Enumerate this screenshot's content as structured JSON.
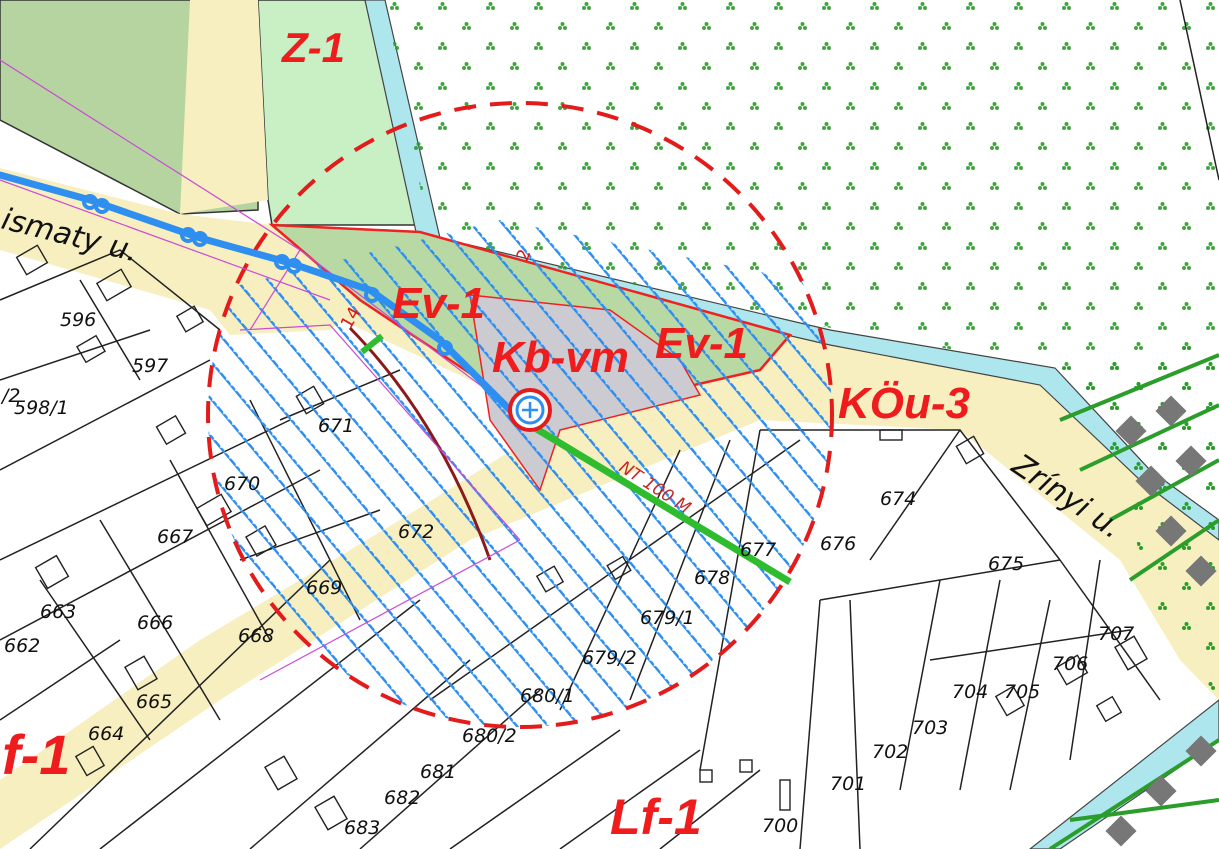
{
  "map": {
    "zones": [
      "Z-1",
      "Ev-1",
      "Ev-1",
      "Kb-vm",
      "KÖu-3",
      "Lf-1",
      "f-1"
    ],
    "streets": [
      "ismaty u.",
      "Zrínyi u."
    ],
    "parcels": [
      "596",
      "597",
      "598/1",
      "/2",
      "671",
      "670",
      "667",
      "672",
      "669",
      "666",
      "663",
      "662",
      "668",
      "665",
      "664",
      "674",
      "675",
      "676",
      "677",
      "678",
      "679/1",
      "679/2",
      "680/1",
      "680/2",
      "681",
      "682",
      "683",
      "700",
      "701",
      "702",
      "703",
      "704",
      "705",
      "706",
      "707"
    ],
    "pipe_label": "NT 100 M",
    "boundary_numbers": [
      "14",
      "2"
    ],
    "colors": {
      "zone_label": "#ee1c1c",
      "road_fill": "#f7efbf",
      "green_zone": "#c8f0c4",
      "forest": "#b5d4a0",
      "special_zone": "#cbcbd1",
      "protection_hatch": "#2f8ff0",
      "water_line": "#2f8ff0",
      "pipeline": "#2fbd2f",
      "canal": "#aee6ee"
    },
    "icons": [
      "gas-station-symbol-icon",
      "tree-symbol-icon",
      "building-symbol-icon"
    ]
  }
}
